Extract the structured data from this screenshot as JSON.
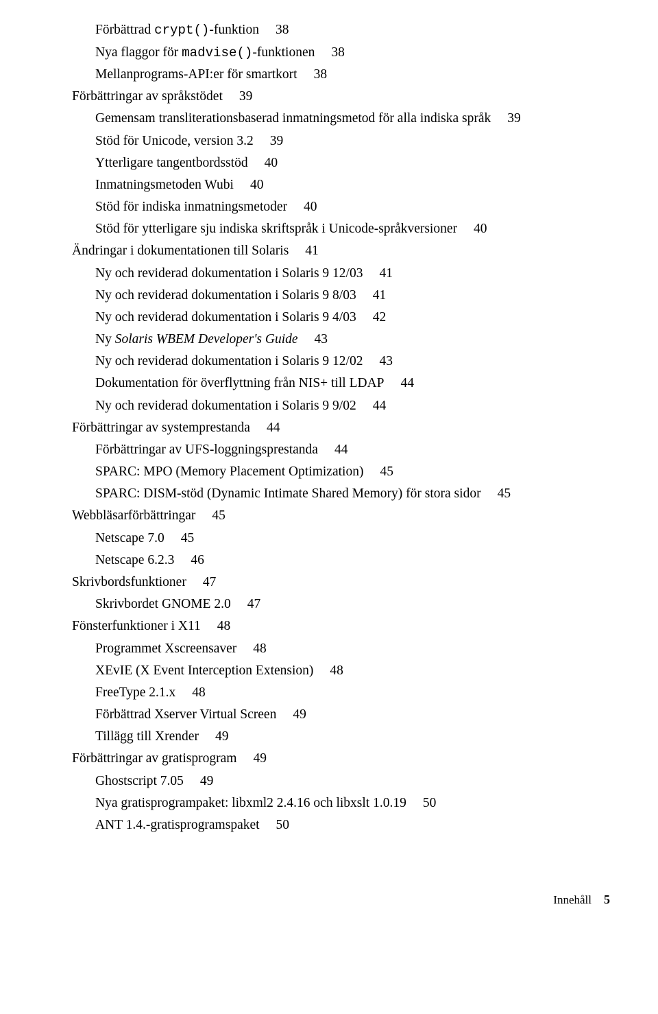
{
  "toc": [
    {
      "level": 1,
      "segments": [
        {
          "t": "Förbättrad "
        },
        {
          "t": "crypt()",
          "mono": true
        },
        {
          "t": "-funktion"
        }
      ],
      "page": "38"
    },
    {
      "level": 1,
      "segments": [
        {
          "t": "Nya flaggor för "
        },
        {
          "t": "madvise()",
          "mono": true
        },
        {
          "t": "-funktionen"
        }
      ],
      "page": "38"
    },
    {
      "level": 1,
      "segments": [
        {
          "t": "Mellanprograms-API:er för smartkort"
        }
      ],
      "page": "38"
    },
    {
      "level": 0,
      "segments": [
        {
          "t": "Förbättringar av språkstödet"
        }
      ],
      "page": "39"
    },
    {
      "level": 1,
      "segments": [
        {
          "t": "Gemensam transliterationsbaserad inmatningsmetod för alla indiska språk"
        }
      ],
      "page": "39"
    },
    {
      "level": 1,
      "segments": [
        {
          "t": "Stöd för Unicode, version 3.2"
        }
      ],
      "page": "39"
    },
    {
      "level": 1,
      "segments": [
        {
          "t": "Ytterligare tangentbordsstöd"
        }
      ],
      "page": "40"
    },
    {
      "level": 1,
      "segments": [
        {
          "t": "Inmatningsmetoden Wubi"
        }
      ],
      "page": "40"
    },
    {
      "level": 1,
      "segments": [
        {
          "t": "Stöd för indiska inmatningsmetoder"
        }
      ],
      "page": "40"
    },
    {
      "level": 1,
      "segments": [
        {
          "t": "Stöd för ytterligare sju indiska skriftspråk i Unicode-språkversioner"
        }
      ],
      "page": "40"
    },
    {
      "level": 0,
      "segments": [
        {
          "t": "Ändringar i dokumentationen till Solaris"
        }
      ],
      "page": "41"
    },
    {
      "level": 1,
      "segments": [
        {
          "t": "Ny och reviderad dokumentation i Solaris 9 12/03"
        }
      ],
      "page": "41"
    },
    {
      "level": 1,
      "segments": [
        {
          "t": "Ny och reviderad dokumentation i Solaris 9 8/03"
        }
      ],
      "page": "41"
    },
    {
      "level": 1,
      "segments": [
        {
          "t": "Ny och reviderad dokumentation i Solaris 9 4/03"
        }
      ],
      "page": "42"
    },
    {
      "level": 1,
      "segments": [
        {
          "t": "Ny "
        },
        {
          "t": "Solaris WBEM Developer's Guide",
          "italic": true
        }
      ],
      "page": "43"
    },
    {
      "level": 1,
      "segments": [
        {
          "t": "Ny och reviderad dokumentation i Solaris 9 12/02"
        }
      ],
      "page": "43"
    },
    {
      "level": 1,
      "segments": [
        {
          "t": "Dokumentation för överflyttning från NIS+ till LDAP"
        }
      ],
      "page": "44"
    },
    {
      "level": 1,
      "segments": [
        {
          "t": "Ny och reviderad dokumentation i Solaris 9 9/02"
        }
      ],
      "page": "44"
    },
    {
      "level": 0,
      "segments": [
        {
          "t": "Förbättringar av systemprestanda"
        }
      ],
      "page": "44"
    },
    {
      "level": 1,
      "segments": [
        {
          "t": "Förbättringar av UFS-loggningsprestanda"
        }
      ],
      "page": "44"
    },
    {
      "level": 1,
      "segments": [
        {
          "t": "SPARC: MPO (Memory Placement Optimization)"
        }
      ],
      "page": "45"
    },
    {
      "level": 1,
      "segments": [
        {
          "t": "SPARC: DISM-stöd (Dynamic Intimate Shared Memory) för stora sidor"
        }
      ],
      "page": "45"
    },
    {
      "level": 0,
      "segments": [
        {
          "t": "Webbläsarförbättringar"
        }
      ],
      "page": "45"
    },
    {
      "level": 1,
      "segments": [
        {
          "t": "Netscape 7.0"
        }
      ],
      "page": "45"
    },
    {
      "level": 1,
      "segments": [
        {
          "t": "Netscape 6.2.3"
        }
      ],
      "page": "46"
    },
    {
      "level": 0,
      "segments": [
        {
          "t": "Skrivbordsfunktioner"
        }
      ],
      "page": "47"
    },
    {
      "level": 1,
      "segments": [
        {
          "t": "Skrivbordet GNOME 2.0"
        }
      ],
      "page": "47"
    },
    {
      "level": 0,
      "segments": [
        {
          "t": "Fönsterfunktioner i X11"
        }
      ],
      "page": "48"
    },
    {
      "level": 1,
      "segments": [
        {
          "t": "Programmet Xscreensaver"
        }
      ],
      "page": "48"
    },
    {
      "level": 1,
      "segments": [
        {
          "t": "XEvIE (X Event Interception Extension)"
        }
      ],
      "page": "48"
    },
    {
      "level": 1,
      "segments": [
        {
          "t": "FreeType 2.1.x"
        }
      ],
      "page": "48"
    },
    {
      "level": 1,
      "segments": [
        {
          "t": "Förbättrad Xserver Virtual Screen"
        }
      ],
      "page": "49"
    },
    {
      "level": 1,
      "segments": [
        {
          "t": "Tillägg till Xrender"
        }
      ],
      "page": "49"
    },
    {
      "level": 0,
      "segments": [
        {
          "t": "Förbättringar av gratisprogram"
        }
      ],
      "page": "49"
    },
    {
      "level": 1,
      "segments": [
        {
          "t": "Ghostscript 7.05"
        }
      ],
      "page": "49"
    },
    {
      "level": 1,
      "segments": [
        {
          "t": "Nya gratisprogrampaket: libxml2 2.4.16 och libxslt 1.0.19"
        }
      ],
      "page": "50"
    },
    {
      "level": 1,
      "segments": [
        {
          "t": "ANT 1.4.-gratisprogramspaket"
        }
      ],
      "page": "50"
    }
  ],
  "footer": {
    "label": "Innehåll",
    "page": "5"
  }
}
